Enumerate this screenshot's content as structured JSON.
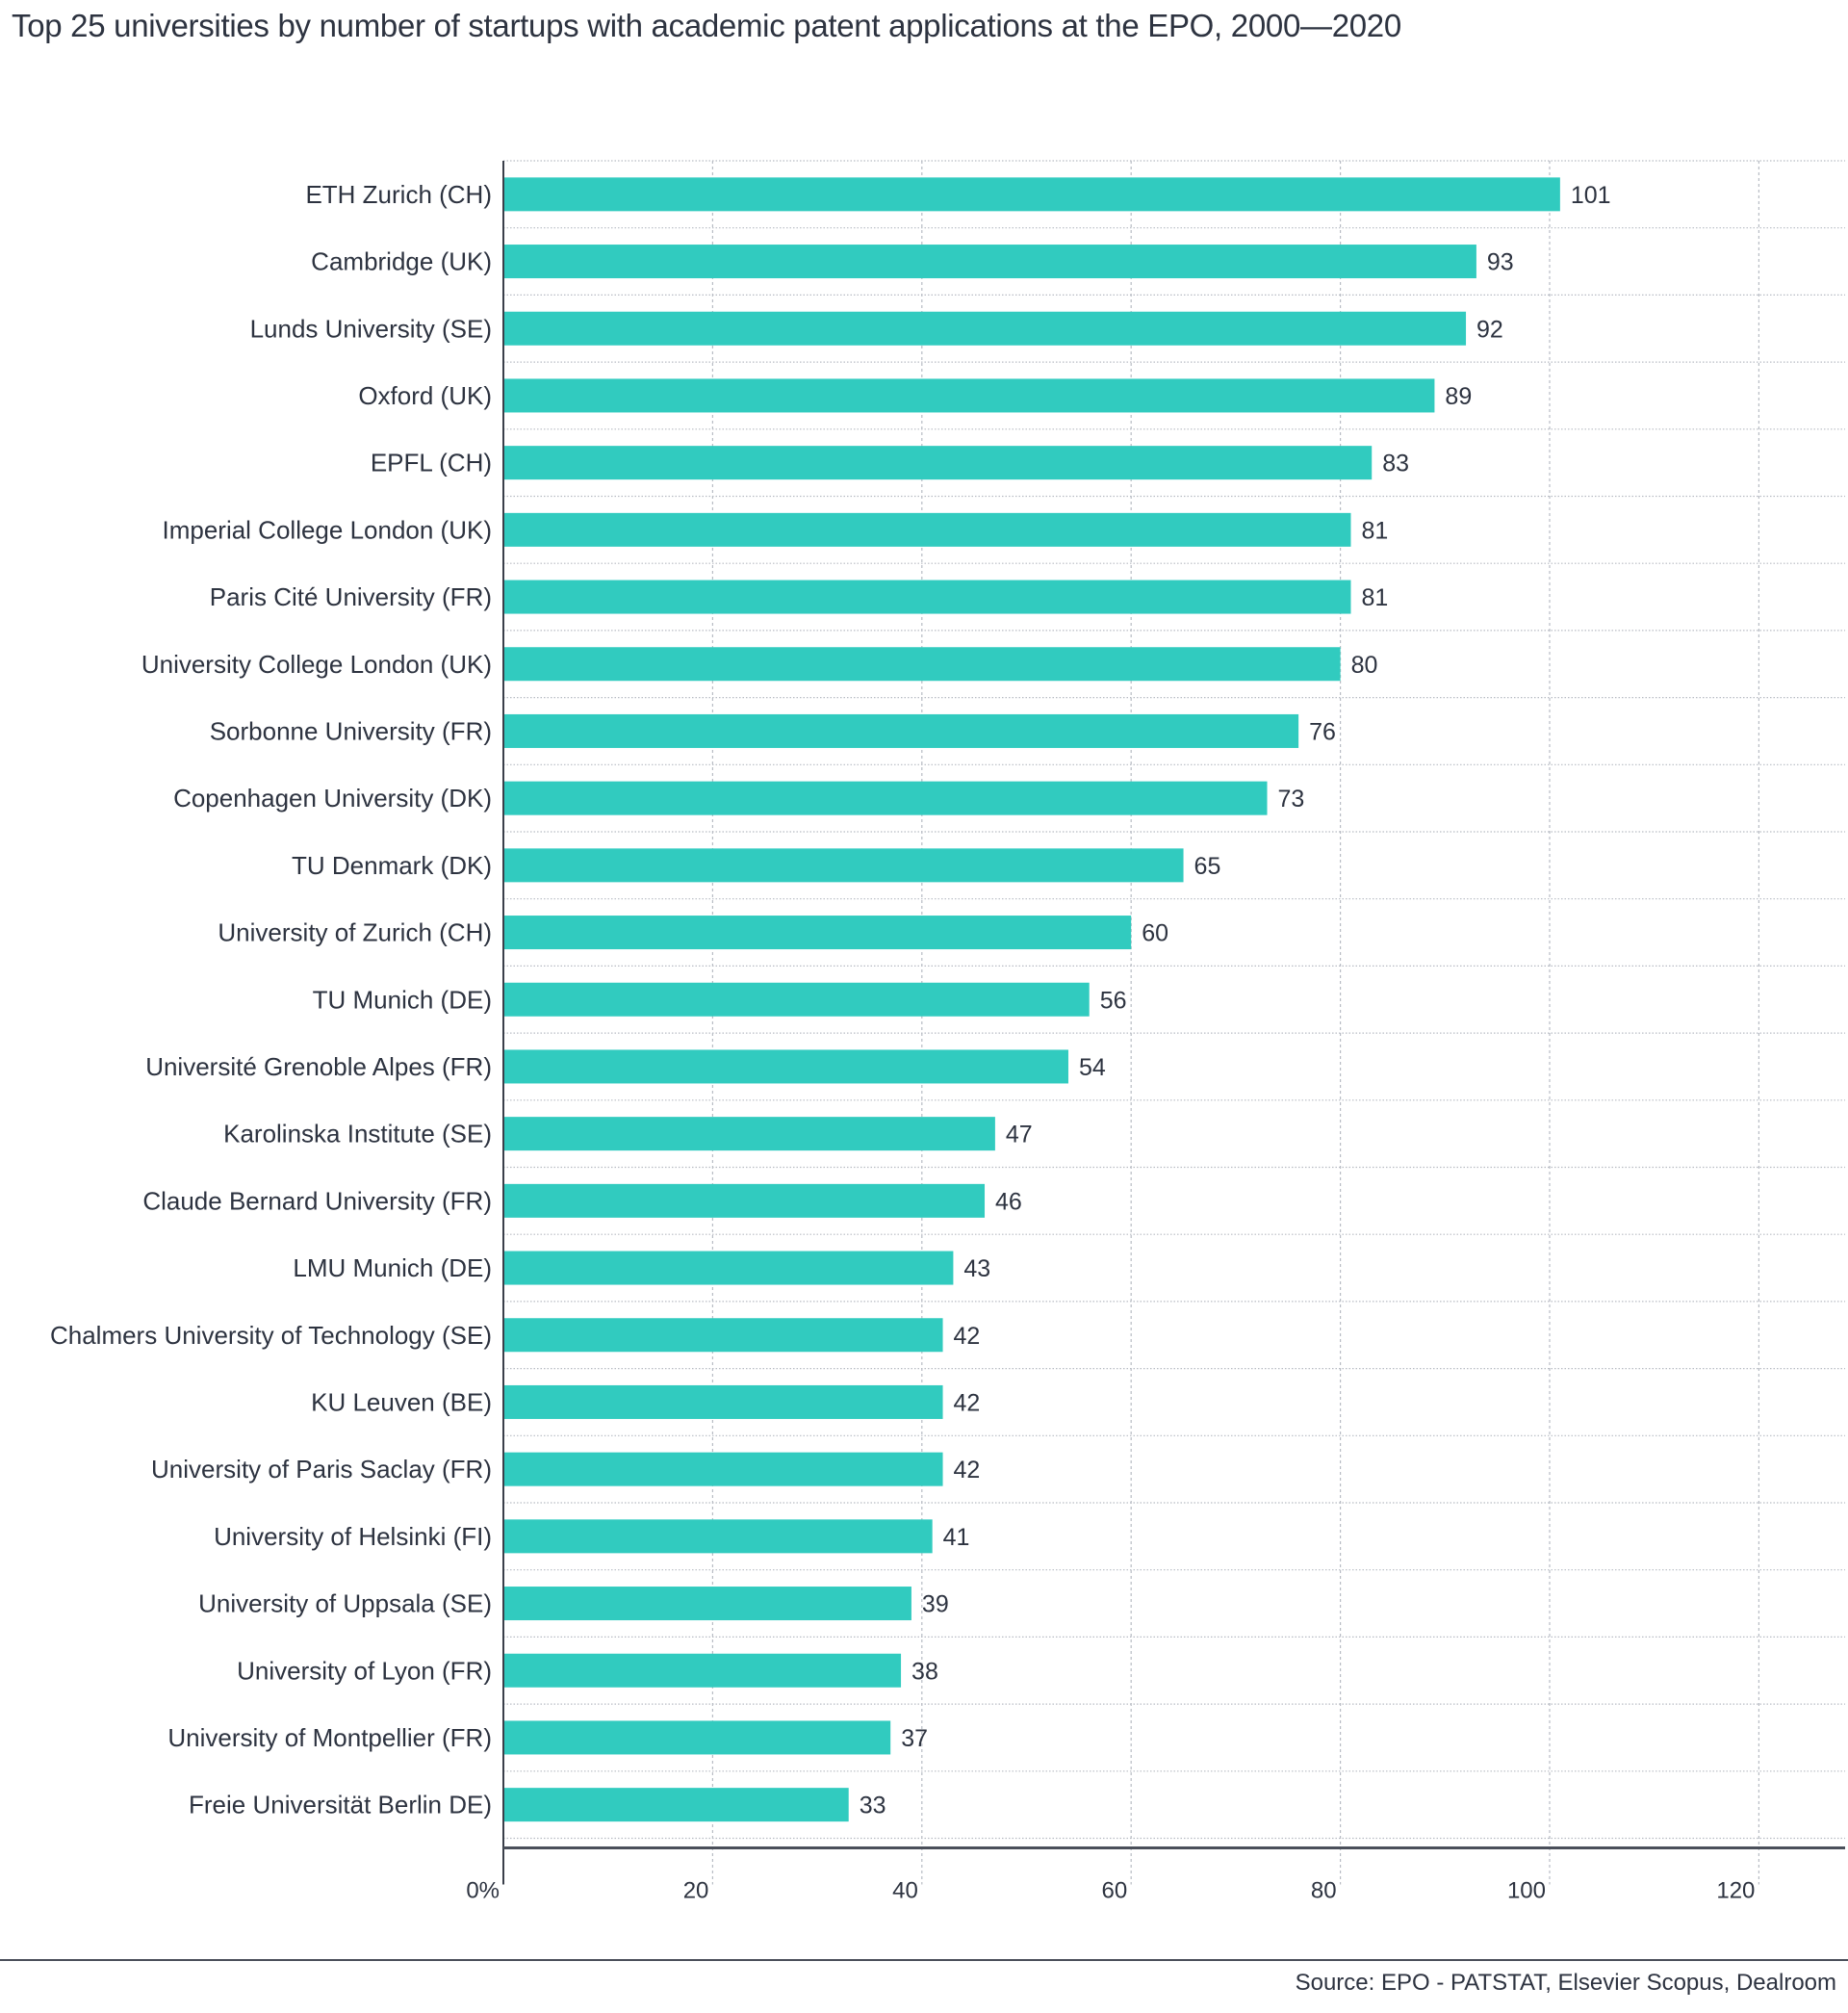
{
  "chart_data": {
    "type": "bar",
    "orientation": "horizontal",
    "title": "Top 25 universities by number of startups with academic patent applications at the EPO, 2000—2020",
    "categories": [
      "ETH Zurich (CH)",
      "Cambridge (UK)",
      "Lunds University (SE)",
      "Oxford (UK)",
      "EPFL (CH)",
      "Imperial College London (UK)",
      "Paris Cité University (FR)",
      "University College London (UK)",
      "Sorbonne University (FR)",
      "Copenhagen University (DK)",
      "TU Denmark (DK)",
      "University of Zurich (CH)",
      "TU Munich (DE)",
      "Université Grenoble Alpes (FR)",
      "Karolinska Institute (SE)",
      "Claude Bernard University (FR)",
      "LMU Munich (DE)",
      "Chalmers University of Technology (SE)",
      "KU Leuven (BE)",
      "University of Paris Saclay (FR)",
      "University of Helsinki (FI)",
      "University of Uppsala (SE)",
      "University of Lyon (FR)",
      "University of Montpellier (FR)",
      "Freie Universität Berlin DE)"
    ],
    "values": [
      101,
      93,
      92,
      89,
      83,
      81,
      81,
      80,
      76,
      73,
      65,
      60,
      56,
      54,
      47,
      46,
      43,
      42,
      42,
      42,
      41,
      39,
      38,
      37,
      33
    ],
    "xlim": [
      0,
      128
    ],
    "xticks": [
      0,
      20,
      40,
      60,
      80,
      100,
      120
    ],
    "xtick_labels": [
      "0%",
      "20",
      "40",
      "60",
      "80",
      "100",
      "120"
    ],
    "xlabel": "",
    "ylabel": "",
    "grid": true,
    "bar_color": "#31cbbf"
  },
  "source": "Source: EPO - PATSTAT, Elsevier Scopus, Dealroom"
}
